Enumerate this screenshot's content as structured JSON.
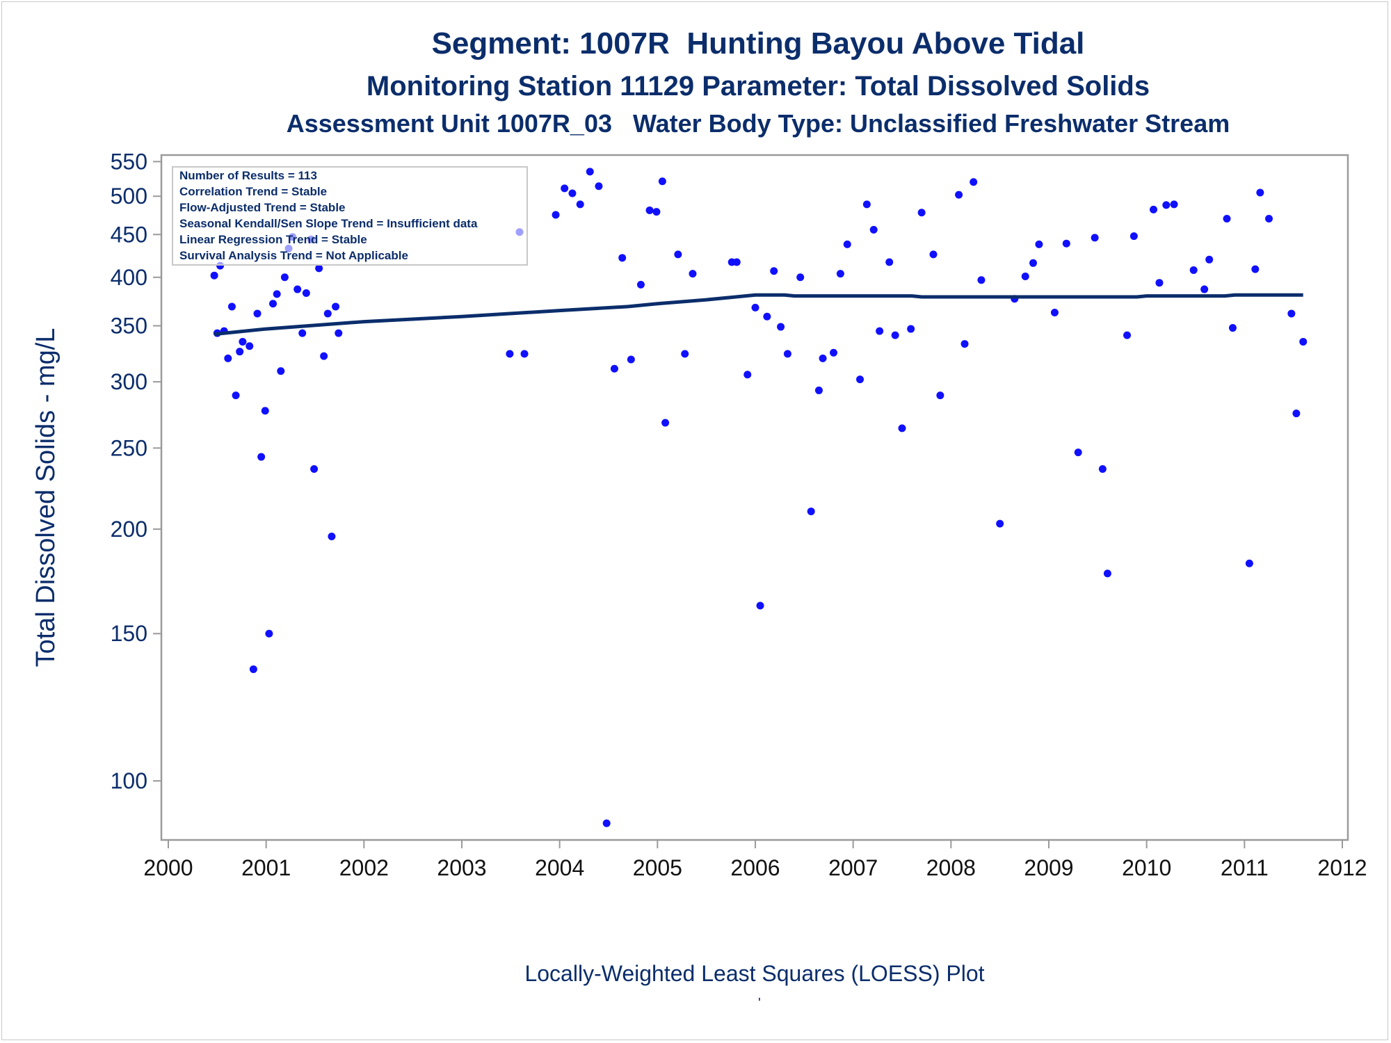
{
  "title": "Segment: 1007R  Hunting Bayou Above Tidal",
  "subtitle": "Monitoring Station 11129 Parameter: Total Dissolved Solids",
  "subtitle2": "Assessment Unit 1007R_03   Water Body Type: Unclassified Freshwater Stream",
  "footnote": "Locally-Weighted Least Squares (LOESS) Plot",
  "footnote_mark": "'",
  "colors": {
    "text": "#0b2d6b",
    "points": "#1010ff",
    "line": "#0b2d6b",
    "axis": "#9a9a9a"
  },
  "chart_data": {
    "type": "scatter",
    "ylabel": "Total Dissolved Solids - mg/L",
    "xlabel": "",
    "xlim": [
      2000,
      2012
    ],
    "ylim": [
      85,
      560
    ],
    "y_scale": "log",
    "grid": false,
    "x_ticks": [
      2000,
      2001,
      2002,
      2003,
      2004,
      2005,
      2006,
      2007,
      2008,
      2009,
      2010,
      2011,
      2012
    ],
    "y_ticks": [
      100,
      150,
      200,
      250,
      300,
      350,
      400,
      450,
      500,
      550
    ],
    "legend": {
      "placement": "top-left",
      "entries": [
        "Number of Results = 113",
        "Correlation Trend = Stable",
        "Flow-Adjusted Trend = Stable",
        "Seasonal Kendall/Sen Slope Trend = Insufficient data",
        "Linear Regression Trend = Stable",
        "Survival Analysis Trend = Not Applicable"
      ]
    },
    "points": [
      [
        2000.47,
        402
      ],
      [
        2000.5,
        343
      ],
      [
        2000.53,
        413
      ],
      [
        2000.57,
        345
      ],
      [
        2000.61,
        320
      ],
      [
        2000.65,
        369
      ],
      [
        2000.69,
        289
      ],
      [
        2000.73,
        326
      ],
      [
        2000.76,
        335
      ],
      [
        2000.83,
        331
      ],
      [
        2000.87,
        136
      ],
      [
        2000.91,
        362
      ],
      [
        2000.95,
        244
      ],
      [
        2000.99,
        277
      ],
      [
        2001.03,
        150
      ],
      [
        2001.07,
        372
      ],
      [
        2001.11,
        382
      ],
      [
        2001.15,
        309
      ],
      [
        2001.19,
        400
      ],
      [
        2001.23,
        433
      ],
      [
        2001.27,
        447
      ],
      [
        2001.32,
        387
      ],
      [
        2001.37,
        343
      ],
      [
        2001.41,
        383
      ],
      [
        2001.46,
        444
      ],
      [
        2001.49,
        236
      ],
      [
        2001.54,
        410
      ],
      [
        2001.59,
        322
      ],
      [
        2001.63,
        362
      ],
      [
        2001.67,
        196
      ],
      [
        2001.71,
        369
      ],
      [
        2001.74,
        343
      ],
      [
        2003.49,
        324
      ],
      [
        2003.59,
        453
      ],
      [
        2003.64,
        324
      ],
      [
        2003.96,
        475
      ],
      [
        2004.05,
        511
      ],
      [
        2004.13,
        504
      ],
      [
        2004.21,
        489
      ],
      [
        2004.31,
        535
      ],
      [
        2004.4,
        514
      ],
      [
        2004.48,
        89
      ],
      [
        2004.56,
        311
      ],
      [
        2004.64,
        422
      ],
      [
        2004.73,
        319
      ],
      [
        2004.83,
        392
      ],
      [
        2004.92,
        481
      ],
      [
        2004.99,
        479
      ],
      [
        2005.05,
        521
      ],
      [
        2005.08,
        268
      ],
      [
        2005.21,
        426
      ],
      [
        2005.28,
        324
      ],
      [
        2005.36,
        404
      ],
      [
        2005.76,
        417
      ],
      [
        2005.81,
        417
      ],
      [
        2005.92,
        306
      ],
      [
        2006.0,
        368
      ],
      [
        2006.05,
        162
      ],
      [
        2006.12,
        359
      ],
      [
        2006.19,
        407
      ],
      [
        2006.26,
        349
      ],
      [
        2006.33,
        324
      ],
      [
        2006.46,
        400
      ],
      [
        2006.57,
        210
      ],
      [
        2006.65,
        293
      ],
      [
        2006.69,
        320
      ],
      [
        2006.8,
        325
      ],
      [
        2006.87,
        404
      ],
      [
        2006.94,
        438
      ],
      [
        2007.07,
        302
      ],
      [
        2007.14,
        489
      ],
      [
        2007.21,
        456
      ],
      [
        2007.27,
        345
      ],
      [
        2007.37,
        417
      ],
      [
        2007.43,
        341
      ],
      [
        2007.5,
        264
      ],
      [
        2007.59,
        347
      ],
      [
        2007.7,
        478
      ],
      [
        2007.82,
        426
      ],
      [
        2007.89,
        289
      ],
      [
        2008.08,
        502
      ],
      [
        2008.14,
        333
      ],
      [
        2008.23,
        520
      ],
      [
        2008.31,
        397
      ],
      [
        2008.5,
        203
      ],
      [
        2008.65,
        377
      ],
      [
        2008.76,
        401
      ],
      [
        2008.84,
        416
      ],
      [
        2008.9,
        438
      ],
      [
        2009.06,
        363
      ],
      [
        2009.18,
        439
      ],
      [
        2009.3,
        247
      ],
      [
        2009.47,
        446
      ],
      [
        2009.55,
        236
      ],
      [
        2009.6,
        177
      ],
      [
        2009.8,
        341
      ],
      [
        2009.87,
        448
      ],
      [
        2010.07,
        482
      ],
      [
        2010.13,
        394
      ],
      [
        2010.2,
        488
      ],
      [
        2010.28,
        489
      ],
      [
        2010.48,
        408
      ],
      [
        2010.59,
        387
      ],
      [
        2010.64,
        420
      ],
      [
        2010.82,
        470
      ],
      [
        2010.88,
        348
      ],
      [
        2011.05,
        182
      ],
      [
        2011.11,
        409
      ],
      [
        2011.16,
        505
      ],
      [
        2011.25,
        470
      ],
      [
        2011.48,
        362
      ],
      [
        2011.53,
        275
      ],
      [
        2011.6,
        335
      ]
    ],
    "loess": [
      [
        2000.47,
        342
      ],
      [
        2001.0,
        347
      ],
      [
        2002.0,
        354
      ],
      [
        2003.0,
        359
      ],
      [
        2004.0,
        365
      ],
      [
        2004.7,
        369
      ],
      [
        2005.0,
        372
      ],
      [
        2005.5,
        376
      ],
      [
        2005.8,
        379
      ],
      [
        2006.0,
        381
      ],
      [
        2006.3,
        381
      ],
      [
        2006.4,
        380
      ],
      [
        2007.0,
        380
      ],
      [
        2007.6,
        380
      ],
      [
        2007.7,
        379
      ],
      [
        2008.0,
        379
      ],
      [
        2009.0,
        379
      ],
      [
        2009.9,
        379
      ],
      [
        2010.0,
        380
      ],
      [
        2010.8,
        380
      ],
      [
        2010.9,
        381
      ],
      [
        2011.6,
        381
      ]
    ]
  }
}
